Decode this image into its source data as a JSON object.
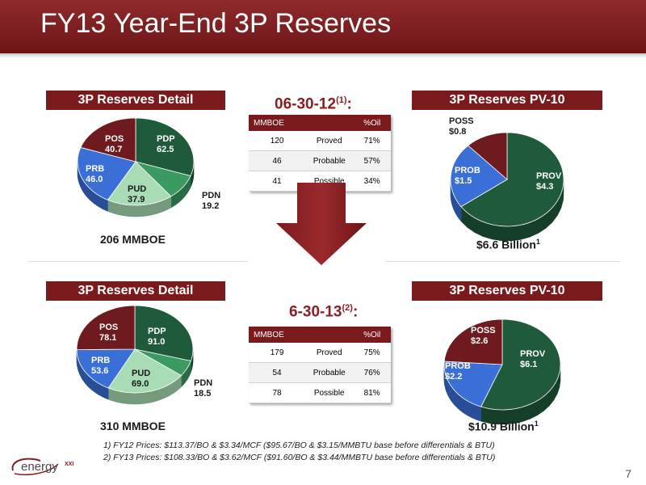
{
  "page": {
    "title": "FY13 Year-End 3P Reserves",
    "page_number": "7",
    "logo_text": "energy",
    "logo_suffix": "XXI"
  },
  "top": {
    "detail_title": "3P Reserves Detail",
    "pv_title": "3P Reserves PV-10",
    "date_label": "06-30-12",
    "date_sup": "(1)",
    "date_colon": ":",
    "total_label": "206 MMBOE",
    "pv_total": "$6.6 Billion",
    "pv_total_sup": "1",
    "table": {
      "headers": [
        "MMBOE",
        "",
        "%Oil"
      ],
      "rows": [
        [
          "120",
          "Proved",
          "71%"
        ],
        [
          "46",
          "Probable",
          "57%"
        ],
        [
          "41",
          "Possible",
          "34%"
        ]
      ]
    },
    "detail_labels": {
      "pdp": "PDP",
      "pdp_val": "62.5",
      "pdn": "PDN",
      "pdn_val": "19.2",
      "pud": "PUD",
      "pud_val": "37.9",
      "prb": "PRB",
      "prb_val": "46.0",
      "pos": "POS",
      "pos_val": "40.7"
    },
    "pv_labels": {
      "prov": "PROV",
      "prov_val": "$4.3",
      "prob": "PROB",
      "prob_val": "$1.5",
      "poss": "POSS",
      "poss_val": "$0.8"
    }
  },
  "bottom": {
    "detail_title": "3P Reserves Detail",
    "pv_title": "3P Reserves PV-10",
    "date_label": "6-30-13",
    "date_sup": "(2)",
    "date_colon": ":",
    "total_label": "310 MMBOE",
    "pv_total": "$10.9 Billion",
    "pv_total_sup": "1",
    "table": {
      "headers": [
        "MMBOE",
        "",
        "%Oil"
      ],
      "rows": [
        [
          "179",
          "Proved",
          "75%"
        ],
        [
          "54",
          "Probable",
          "76%"
        ],
        [
          "78",
          "Possible",
          "81%"
        ]
      ]
    },
    "detail_labels": {
      "pdp": "PDP",
      "pdp_val": "91.0",
      "pdn": "PDN",
      "pdn_val": "18.5",
      "pud": "PUD",
      "pud_val": "69.0",
      "prb": "PRB",
      "prb_val": "53.6",
      "pos": "POS",
      "pos_val": "78.1"
    },
    "pv_labels": {
      "prov": "PROV",
      "prov_val": "$6.1",
      "prob": "PROB",
      "prob_val": "$2.2",
      "poss": "POSS",
      "poss_val": "$2.6"
    }
  },
  "footnotes": [
    "1)  FY12 Prices: $113.37/BO & $3.34/MCF ($95.67/BO & $3.15/MMBTU base before differentials & BTU)",
    "2)  FY13 Prices: $108.33/BO & $3.62/MCF ($91.60/BO & $3.44/MMBTU base before differentials & BTU)"
  ],
  "colors": {
    "brand": "#7a1a1c",
    "pdp": "#1f5a3a",
    "pdn": "#3b9a62",
    "pud": "#a8dcb4",
    "prb": "#3a6fd8",
    "pos": "#6e1a1e",
    "prov": "#1f5a3a",
    "prob": "#3a6fd8",
    "poss": "#6e1a1e"
  },
  "chart_data": [
    {
      "type": "pie",
      "title": "3P Reserves Detail",
      "categories": [
        "PDP",
        "PDN",
        "PUD",
        "PRB",
        "POS"
      ],
      "values": [
        62.5,
        19.2,
        37.9,
        46.0,
        40.7
      ],
      "total": "206 MMBOE"
    },
    {
      "type": "pie",
      "title": "3P Reserves PV-10",
      "categories": [
        "PROV",
        "PROB",
        "POSS"
      ],
      "values": [
        4.3,
        1.5,
        0.8
      ],
      "total": "$6.6 Billion"
    },
    {
      "type": "pie",
      "title": "3P Reserves Detail",
      "categories": [
        "PDP",
        "PDN",
        "PUD",
        "PRB",
        "POS"
      ],
      "values": [
        91.0,
        18.5,
        69.0,
        53.6,
        78.1
      ],
      "total": "310 MMBOE"
    },
    {
      "type": "pie",
      "title": "3P Reserves PV-10",
      "categories": [
        "PROV",
        "PROB",
        "POSS"
      ],
      "values": [
        6.1,
        2.2,
        2.6
      ],
      "total": "$10.9 Billion"
    },
    {
      "type": "table",
      "title": "06-30-12",
      "columns": [
        "MMBOE",
        "",
        "%Oil"
      ],
      "rows": [
        [
          "120",
          "Proved",
          "71%"
        ],
        [
          "46",
          "Probable",
          "57%"
        ],
        [
          "41",
          "Possible",
          "34%"
        ]
      ]
    },
    {
      "type": "table",
      "title": "6-30-13",
      "columns": [
        "MMBOE",
        "",
        "%Oil"
      ],
      "rows": [
        [
          "179",
          "Proved",
          "75%"
        ],
        [
          "54",
          "Probable",
          "76%"
        ],
        [
          "78",
          "Possible",
          "81%"
        ]
      ]
    }
  ]
}
